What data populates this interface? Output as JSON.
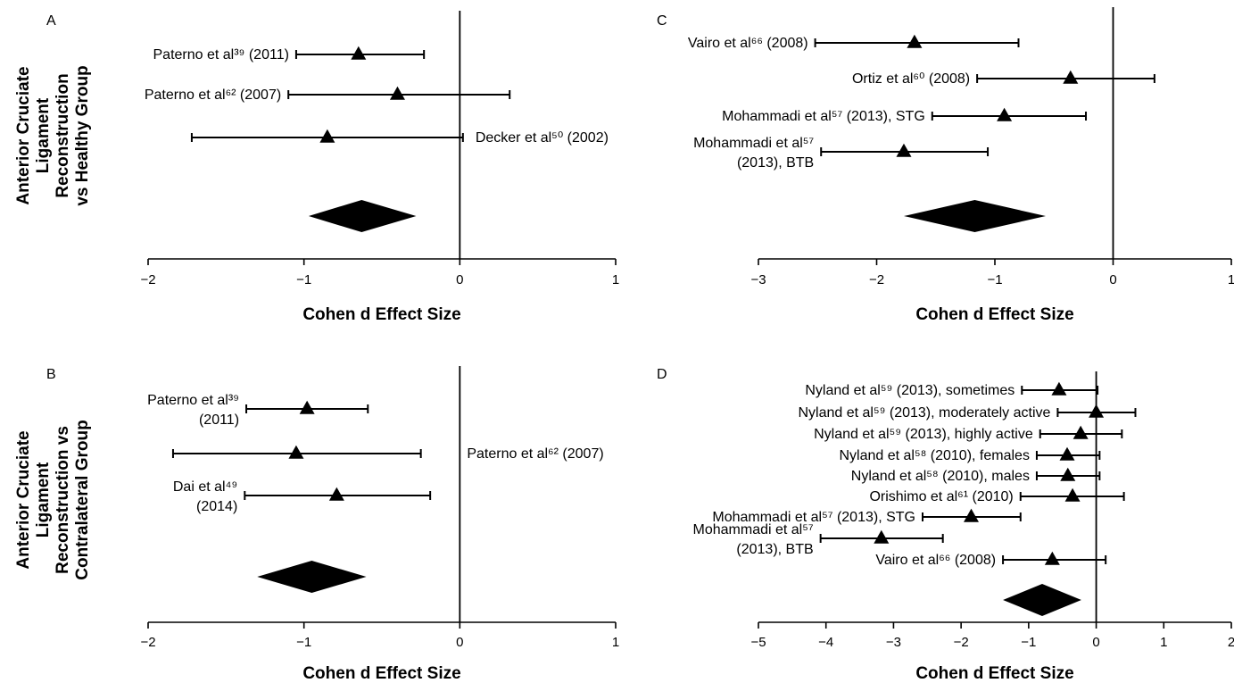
{
  "row_labels": [
    [
      "Anterior Cruciate",
      "Ligament",
      "Reconstruction",
      "vs Healthy Group"
    ],
    [
      "Anterior Cruciate",
      "Ligament",
      "Reconstruction vs",
      "Contralateral Group"
    ]
  ],
  "chart_data": [
    {
      "type": "forest",
      "panel": "A",
      "xlabel": "Cohen d Effect Size",
      "xlim": [
        -2,
        1
      ],
      "xticks": [
        -2,
        -1,
        0,
        1
      ],
      "studies": [
        {
          "label": [
            "Paterno et al³⁹ (2011)"
          ],
          "label_side": "left",
          "d": -0.65,
          "ci": [
            -1.05,
            -0.23
          ]
        },
        {
          "label": [
            "Paterno et al⁶² (2007)"
          ],
          "label_side": "left",
          "d": -0.4,
          "ci": [
            -1.1,
            0.32
          ]
        },
        {
          "label": [
            "Decker et al⁵⁰ (2002)"
          ],
          "label_side": "right",
          "d": -0.85,
          "ci": [
            -1.72,
            0.02
          ]
        }
      ],
      "pooled": {
        "d": -0.63,
        "ci": [
          -0.97,
          -0.28
        ]
      }
    },
    {
      "type": "forest",
      "panel": "C",
      "xlabel": "Cohen d Effect Size",
      "xlim": [
        -3,
        1
      ],
      "xticks": [
        -3,
        -2,
        -1,
        0,
        1
      ],
      "studies": [
        {
          "label": [
            "Vairo et al⁶⁶ (2008)"
          ],
          "label_side": "left",
          "d": -1.68,
          "ci": [
            -2.52,
            -0.8
          ]
        },
        {
          "label": [
            "Ortiz et al⁶⁰ (2008)"
          ],
          "label_side": "left",
          "d": -0.36,
          "ci": [
            -1.15,
            0.35
          ]
        },
        {
          "label": [
            "Mohammadi et al⁵⁷ (2013), STG"
          ],
          "label_side": "left",
          "d": -0.92,
          "ci": [
            -1.53,
            -0.23
          ]
        },
        {
          "label": [
            "Mohammadi et al⁵⁷",
            "(2013), BTB"
          ],
          "label_side": "left",
          "d": -1.77,
          "ci": [
            -2.47,
            -1.06
          ]
        }
      ],
      "pooled": {
        "d": -1.17,
        "ci": [
          -1.77,
          -0.57
        ]
      }
    },
    {
      "type": "forest",
      "panel": "B",
      "xlabel": "Cohen d Effect Size",
      "xlim": [
        -2,
        1
      ],
      "xticks": [
        -2,
        -1,
        0,
        1
      ],
      "studies": [
        {
          "label": [
            "Paterno et al³⁹",
            "(2011)"
          ],
          "label_side": "left",
          "d": -0.98,
          "ci": [
            -1.37,
            -0.59
          ]
        },
        {
          "label": [
            "Paterno et al⁶² (2007)"
          ],
          "label_side": "right",
          "d": -1.05,
          "ci": [
            -1.84,
            -0.25
          ]
        },
        {
          "label": [
            "Dai et al⁴⁹",
            "(2014)"
          ],
          "label_side": "left",
          "d": -0.79,
          "ci": [
            -1.38,
            -0.19
          ]
        }
      ],
      "pooled": {
        "d": -0.95,
        "ci": [
          -1.3,
          -0.6
        ]
      }
    },
    {
      "type": "forest",
      "panel": "D",
      "xlabel": "Cohen d Effect Size",
      "xlim": [
        -5,
        2
      ],
      "xticks": [
        -5,
        -4,
        -3,
        -2,
        -1,
        0,
        1,
        2
      ],
      "studies": [
        {
          "label": [
            "Nyland et al⁵⁹ (2013), sometimes"
          ],
          "label_side": "left",
          "d": -0.55,
          "ci": [
            -1.1,
            0.02
          ]
        },
        {
          "label": [
            "Nyland et al⁵⁹ (2013), moderately active"
          ],
          "label_side": "left",
          "d": 0.0,
          "ci": [
            -0.57,
            0.58
          ]
        },
        {
          "label": [
            "Nyland et al⁵⁹ (2013), highly active"
          ],
          "label_side": "left",
          "d": -0.23,
          "ci": [
            -0.83,
            0.38
          ]
        },
        {
          "label": [
            "Nyland et al⁵⁸ (2010), females"
          ],
          "label_side": "left",
          "d": -0.43,
          "ci": [
            -0.88,
            0.05
          ]
        },
        {
          "label": [
            "Nyland et al⁵⁸ (2010), males"
          ],
          "label_side": "left",
          "d": -0.42,
          "ci": [
            -0.88,
            0.05
          ]
        },
        {
          "label": [
            "Orishimo et al⁶¹ (2010)"
          ],
          "label_side": "left",
          "d": -0.35,
          "ci": [
            -1.12,
            0.41
          ]
        },
        {
          "label": [
            "Mohammadi et al⁵⁷ (2013), STG"
          ],
          "label_side": "left",
          "d": -1.85,
          "ci": [
            -2.57,
            -1.12
          ]
        },
        {
          "label": [
            "Mohammadi et al⁵⁷",
            "(2013), BTB"
          ],
          "label_side": "left",
          "d": -3.18,
          "ci": [
            -4.08,
            -2.27
          ]
        },
        {
          "label": [
            "Vairo et al⁶⁶ (2008)"
          ],
          "label_side": "left",
          "d": -0.65,
          "ci": [
            -1.38,
            0.14
          ]
        }
      ],
      "pooled": {
        "d": -0.8,
        "ci": [
          -1.38,
          -0.22
        ]
      }
    }
  ]
}
